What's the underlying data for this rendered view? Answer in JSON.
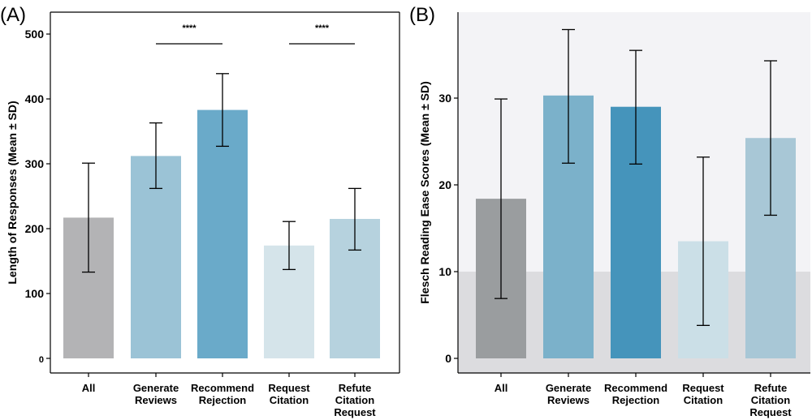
{
  "chart_data": [
    {
      "type": "bar",
      "panel_label": "(A)",
      "ylabel": "Length of Responses (Mean ± SD)",
      "categories": [
        [
          "All"
        ],
        [
          "Generate",
          "Reviews"
        ],
        [
          "Recommend",
          "Rejection"
        ],
        [
          "Request",
          "Citation"
        ],
        [
          "Refute",
          "Citation",
          "Request"
        ]
      ],
      "values": [
        217,
        312,
        383,
        174,
        215
      ],
      "error_low": [
        133,
        262,
        327,
        137,
        167
      ],
      "error_high": [
        301,
        363,
        439,
        211,
        262
      ],
      "colors": [
        "#b3b3b5",
        "#9bc3d6",
        "#6aaac9",
        "#d5e4ea",
        "#b6d2de"
      ],
      "ylim": [
        0,
        520
      ],
      "yticks": [
        0,
        100,
        200,
        300,
        400,
        500
      ],
      "significance": [
        {
          "from": 1,
          "to": 2,
          "y": 484,
          "label": "****"
        },
        {
          "from": 3,
          "to": 4,
          "y": 484,
          "label": "****"
        }
      ]
    },
    {
      "type": "bar",
      "panel_label": "(B)",
      "ylabel": "Flesch Reading Ease Scores (Mean ± SD)",
      "categories": [
        [
          "All"
        ],
        [
          "Generate",
          "Reviews"
        ],
        [
          "Recommend",
          "Rejection"
        ],
        [
          "Request",
          "Citation"
        ],
        [
          "Refute",
          "Citation",
          "Request"
        ]
      ],
      "values": [
        18.4,
        30.3,
        29.0,
        13.5,
        25.4
      ],
      "error_low": [
        6.9,
        22.5,
        22.4,
        3.8,
        16.5
      ],
      "error_high": [
        29.9,
        37.9,
        35.5,
        23.2,
        34.3
      ],
      "colors": [
        "#9a9d9f",
        "#7bb1ca",
        "#4594bb",
        "#cbdfe7",
        "#a8c7d6"
      ],
      "ylim": [
        0,
        40
      ],
      "yticks": [
        0,
        10,
        20,
        30
      ],
      "background_bands": [
        {
          "from": 10,
          "to": 40,
          "color": "#f3f3f6"
        },
        {
          "from": 0,
          "to": 10,
          "color": "#dcdcdf"
        }
      ]
    }
  ]
}
